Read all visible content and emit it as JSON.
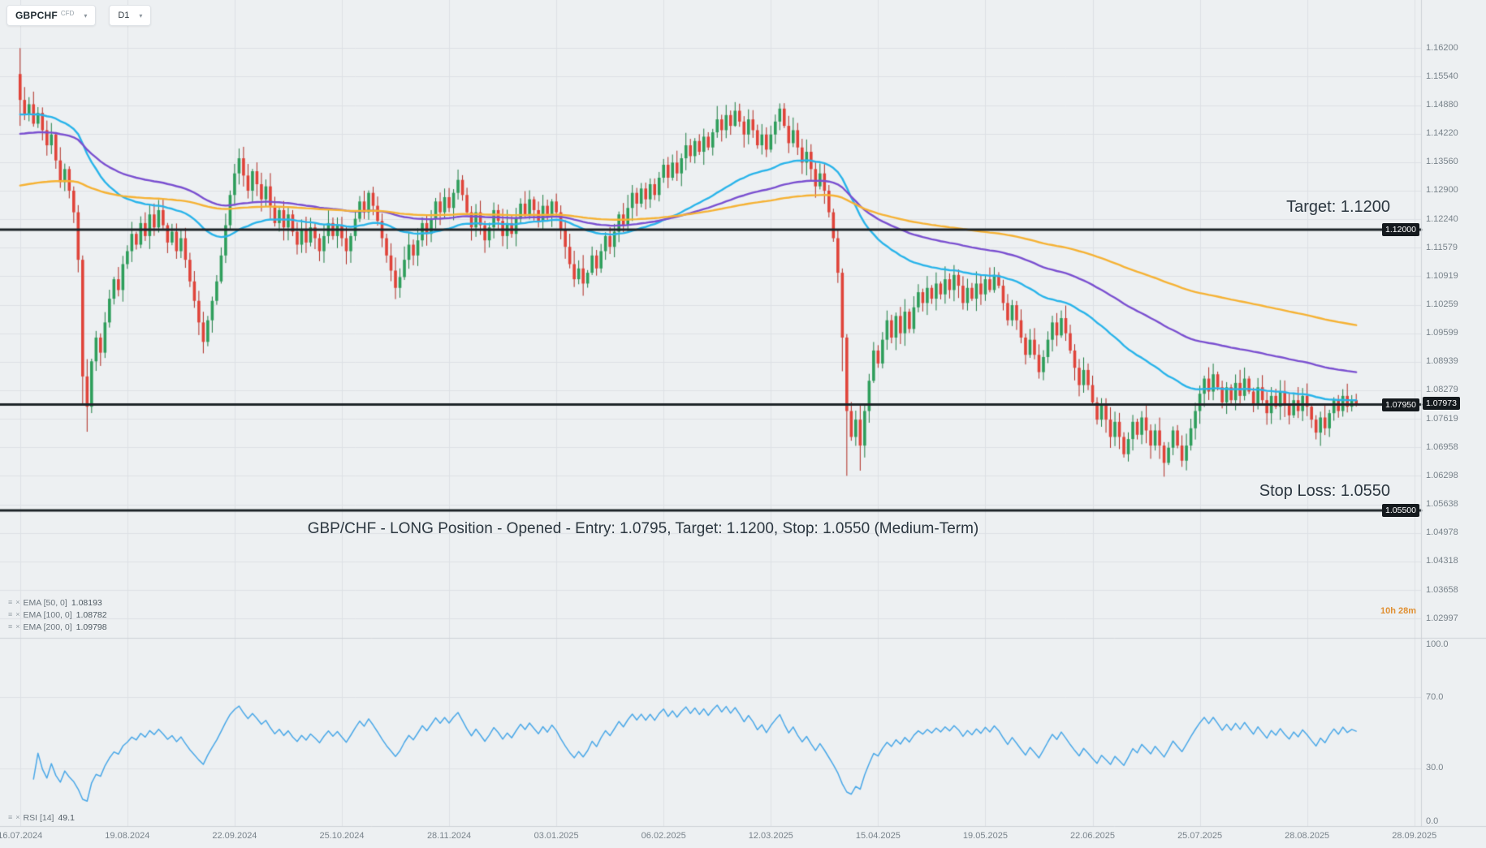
{
  "toolbar": {
    "symbol": "GBPCHF",
    "symbol_type": "CFD",
    "timeframe": "D1"
  },
  "icons": {
    "chevron_down": "▾",
    "menu": "≡",
    "close": "×"
  },
  "annotations": {
    "target_label": "Target: 1.1200",
    "stop_label": "Stop Loss: 1.0550",
    "position_line": "GBP/CHF - LONG Position - Opened - Entry: 1.0795, Target: 1.1200, Stop: 1.0550 (Medium-Term)",
    "countdown": "10h 28m"
  },
  "legend": {
    "emas": [
      {
        "label": "EMA [50, 0]",
        "value": "1.08193"
      },
      {
        "label": "EMA [100, 0]",
        "value": "1.08782"
      },
      {
        "label": "EMA [200, 0]",
        "value": "1.09798"
      }
    ],
    "rsi": {
      "label": "RSI [14]",
      "value": "49.1"
    }
  },
  "colors": {
    "bg": "#edf0f2",
    "grid": "#dde1e5",
    "separator": "#cdd2d6",
    "up": "#2e9e5b",
    "up_border": "#1e7c42",
    "down": "#e04339",
    "down_border": "#b02a20",
    "ema50": "#29b4ea",
    "ema100": "#7a4fd0",
    "ema200": "#f6b234",
    "rsi": "#4aa8e8",
    "level": "#1d2428",
    "axis_text": "#79838b",
    "badge_bg": "#14191d",
    "countdown": "#e09033"
  },
  "chart_data": {
    "type": "candlestick",
    "symbol": "GBPCHF",
    "timeframe": "D1",
    "ylim": [
      1.0255,
      1.1675
    ],
    "bar_offset": 4,
    "open_first": 1.156,
    "y_ticks": [
      "1.16200",
      "1.15540",
      "1.14880",
      "1.14220",
      "1.13560",
      "1.12900",
      "1.12240",
      "1.11579",
      "1.10919",
      "1.10259",
      "1.09599",
      "1.08939",
      "1.08279",
      "1.07619",
      "1.06958",
      "1.06298",
      "1.05638",
      "1.04978",
      "1.04318",
      "1.03658",
      "1.02997"
    ],
    "rsi_ticks": [
      {
        "v": 100,
        "label": "100.0"
      },
      {
        "v": 70,
        "label": "70.0"
      },
      {
        "v": 30,
        "label": "30.0"
      },
      {
        "v": 0,
        "label": "0.0"
      }
    ],
    "rsi_levels": [
      70,
      30
    ],
    "rsi_period": 14,
    "x_labels": [
      {
        "slot": 4,
        "text": "16.07.2024"
      },
      {
        "slot": 28,
        "text": "19.08.2024"
      },
      {
        "slot": 52,
        "text": "22.09.2024"
      },
      {
        "slot": 76,
        "text": "25.10.2024"
      },
      {
        "slot": 100,
        "text": "28.11.2024"
      },
      {
        "slot": 124,
        "text": "03.01.2025"
      },
      {
        "slot": 148,
        "text": "06.02.2025"
      },
      {
        "slot": 172,
        "text": "12.03.2025"
      },
      {
        "slot": 196,
        "text": "15.04.2025"
      },
      {
        "slot": 220,
        "text": "19.05.2025"
      },
      {
        "slot": 244,
        "text": "22.06.2025"
      },
      {
        "slot": 268,
        "text": "25.07.2025"
      },
      {
        "slot": 292,
        "text": "28.08.2025"
      },
      {
        "slot": 316,
        "text": "28.09.2025"
      }
    ],
    "levels": [
      {
        "price": 1.12,
        "label": "1.12000",
        "role": "target"
      },
      {
        "price": 1.0795,
        "label": "1.07950",
        "role": "entry"
      },
      {
        "price": 1.055,
        "label": "1.05500",
        "role": "stop"
      }
    ],
    "current_price": {
      "value": 1.07973,
      "label": "1.07973"
    },
    "emas": [
      {
        "period": 50,
        "seed": 1.1465,
        "color_key": "ema50"
      },
      {
        "period": 100,
        "seed": 1.142,
        "color_key": "ema100"
      },
      {
        "period": 200,
        "seed": 1.13,
        "color_key": "ema200"
      }
    ],
    "closes": [
      1.15,
      1.1465,
      1.149,
      1.1445,
      1.147,
      1.143,
      1.1395,
      1.142,
      1.136,
      1.131,
      1.134,
      1.129,
      1.124,
      1.113,
      1.086,
      1.079,
      1.0895,
      1.095,
      1.0915,
      1.0985,
      1.104,
      1.1085,
      1.106,
      1.112,
      1.115,
      1.119,
      1.1165,
      1.1215,
      1.1185,
      1.1235,
      1.1205,
      1.1245,
      1.121,
      1.117,
      1.1195,
      1.115,
      1.118,
      1.113,
      1.108,
      1.1035,
      1.0985,
      1.094,
      1.099,
      1.1035,
      1.108,
      1.114,
      1.121,
      1.128,
      1.133,
      1.1365,
      1.1325,
      1.129,
      1.1335,
      1.1305,
      1.127,
      1.13,
      1.1255,
      1.1215,
      1.1245,
      1.1205,
      1.1235,
      1.1195,
      1.1165,
      1.12,
      1.117,
      1.1205,
      1.118,
      1.115,
      1.1185,
      1.1215,
      1.1185,
      1.121,
      1.118,
      1.115,
      1.1185,
      1.1225,
      1.1265,
      1.124,
      1.1285,
      1.1255,
      1.122,
      1.118,
      1.114,
      1.1105,
      1.1065,
      1.109,
      1.113,
      1.1165,
      1.114,
      1.1175,
      1.1215,
      1.119,
      1.1225,
      1.1265,
      1.124,
      1.1275,
      1.125,
      1.1285,
      1.1315,
      1.128,
      1.124,
      1.1205,
      1.124,
      1.121,
      1.1175,
      1.1205,
      1.1245,
      1.122,
      1.1185,
      1.1215,
      1.119,
      1.1225,
      1.126,
      1.1235,
      1.127,
      1.1245,
      1.122,
      1.1255,
      1.123,
      1.1265,
      1.124,
      1.12,
      1.116,
      1.112,
      1.1085,
      1.111,
      1.1075,
      1.11,
      1.114,
      1.111,
      1.115,
      1.1185,
      1.116,
      1.1195,
      1.1235,
      1.121,
      1.125,
      1.1285,
      1.126,
      1.1295,
      1.127,
      1.1305,
      1.128,
      1.132,
      1.135,
      1.132,
      1.1355,
      1.133,
      1.1365,
      1.1395,
      1.137,
      1.1405,
      1.138,
      1.1415,
      1.139,
      1.1425,
      1.1455,
      1.143,
      1.1465,
      1.144,
      1.1475,
      1.145,
      1.142,
      1.1455,
      1.143,
      1.1395,
      1.142,
      1.1385,
      1.142,
      1.145,
      1.148,
      1.144,
      1.14,
      1.143,
      1.139,
      1.1355,
      1.138,
      1.134,
      1.13,
      1.133,
      1.129,
      1.124,
      1.118,
      1.11,
      1.095,
      1.078,
      1.072,
      1.076,
      1.07,
      1.078,
      1.085,
      1.092,
      1.089,
      1.0945,
      1.099,
      1.095,
      1.1,
      1.096,
      1.101,
      1.097,
      1.102,
      1.1055,
      1.103,
      1.1065,
      1.104,
      1.1075,
      1.105,
      1.1085,
      1.106,
      1.1095,
      1.107,
      1.103,
      1.1065,
      1.104,
      1.1075,
      1.105,
      1.1085,
      1.106,
      1.1095,
      1.107,
      1.103,
      1.099,
      1.1025,
      1.099,
      1.095,
      1.091,
      1.0945,
      1.091,
      1.087,
      1.0905,
      1.0945,
      1.0985,
      1.0955,
      1.0995,
      1.096,
      1.092,
      1.088,
      1.084,
      1.0875,
      1.084,
      1.08,
      1.076,
      1.0795,
      1.076,
      1.072,
      1.0755,
      1.072,
      1.068,
      1.0715,
      1.0755,
      1.0725,
      1.0765,
      1.0735,
      1.07,
      1.0735,
      1.07,
      1.066,
      1.0695,
      1.0735,
      1.07,
      1.0665,
      1.07,
      1.074,
      1.078,
      1.082,
      1.0855,
      1.0825,
      1.0865,
      1.0835,
      1.08,
      1.0835,
      1.0805,
      1.0845,
      1.0815,
      1.0855,
      1.0825,
      1.0795,
      1.0835,
      1.0805,
      1.0775,
      1.0815,
      1.079,
      1.0825,
      1.0795,
      1.077,
      1.0805,
      1.078,
      1.0815,
      1.079,
      1.076,
      1.073,
      1.0765,
      1.074,
      1.0775,
      1.0805,
      1.078,
      1.0815,
      1.079,
      1.0805,
      1.0797
    ],
    "wick_overrides": {
      "0": [
        1.162,
        1.144
      ],
      "14": [
        1.114,
        1.0795
      ],
      "15": [
        1.09,
        1.0732
      ],
      "160": [
        1.1495,
        1.1438
      ],
      "170": [
        1.1492,
        1.143
      ],
      "184": [
        1.111,
        1.0872
      ],
      "185": [
        1.0958,
        1.063
      ],
      "188": [
        1.0795,
        1.0642
      ],
      "256": [
        1.0708,
        1.0628
      ]
    }
  }
}
